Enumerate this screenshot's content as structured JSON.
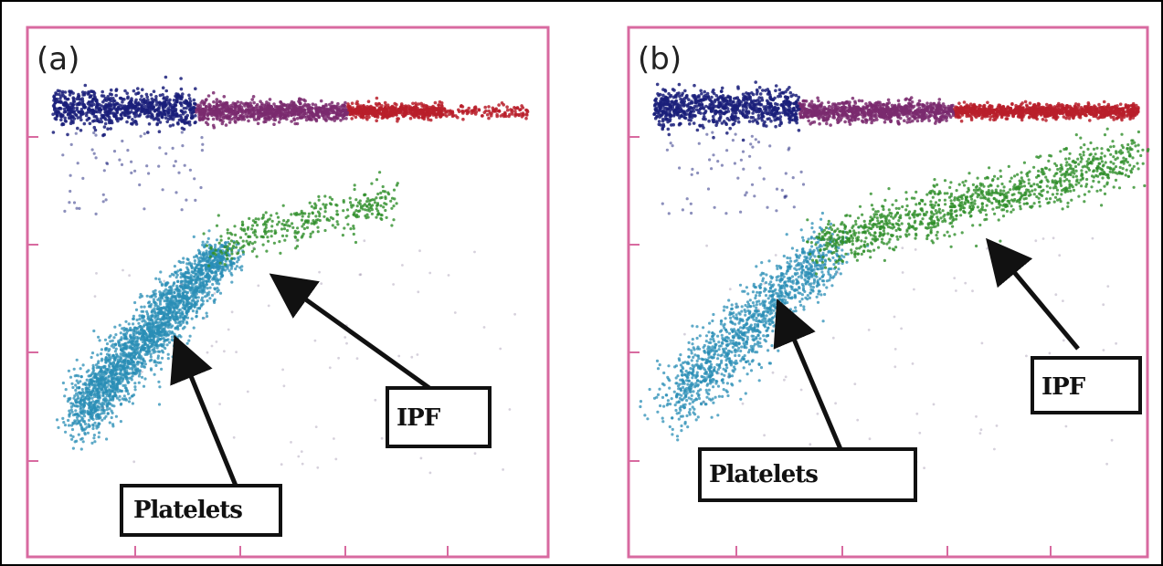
{
  "figure": {
    "panels": [
      {
        "label": "(a)",
        "annotations": [
          "Platelets",
          "IPF"
        ]
      },
      {
        "label": "(b)",
        "annotations": [
          "Platelets",
          "IPF"
        ]
      }
    ]
  },
  "colors": {
    "frame": "#d86aa0",
    "rbc_dark": "#1a1f7a",
    "rbc_mid": "#7a2a6e",
    "rbc_red": "#b81f2a",
    "platelets": "#2a8db5",
    "ipf": "#2f8f2a",
    "noise": "#8a7a9a"
  },
  "chart_data": [
    {
      "type": "scatter",
      "panel": "(a)",
      "title": "",
      "xlabel": "",
      "ylabel": "",
      "grid": false,
      "series": [
        {
          "name": "Platelets",
          "color": "#2a8db5"
        },
        {
          "name": "IPF",
          "color": "#2f8f2a"
        }
      ],
      "annotations": [
        "Platelets",
        "IPF"
      ]
    },
    {
      "type": "scatter",
      "panel": "(b)",
      "title": "",
      "xlabel": "",
      "ylabel": "",
      "grid": false,
      "series": [
        {
          "name": "Platelets",
          "color": "#2a8db5"
        },
        {
          "name": "IPF",
          "color": "#2f8f2a"
        }
      ],
      "annotations": [
        "Platelets",
        "IPF"
      ]
    }
  ]
}
